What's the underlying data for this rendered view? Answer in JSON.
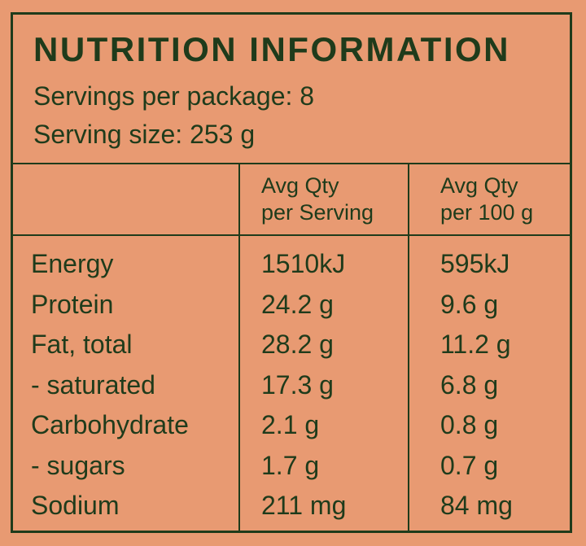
{
  "label": {
    "title": "NUTRITION INFORMATION",
    "servings_per_package": "Servings per package: 8",
    "serving_size": "Serving size: 253 g"
  },
  "columns": {
    "per_serving": [
      "Avg Qty",
      "per Serving"
    ],
    "per_100g": [
      "Avg Qty",
      "per 100 g"
    ]
  },
  "rows": [
    {
      "name": "Energy",
      "per_serving": "1510kJ",
      "per_100g": "595kJ"
    },
    {
      "name": "Protein",
      "per_serving": "24.2 g",
      "per_100g": "9.6 g"
    },
    {
      "name": "Fat, total",
      "per_serving": "28.2 g",
      "per_100g": "11.2 g"
    },
    {
      "name": "- saturated",
      "per_serving": "17.3 g",
      "per_100g": "6.8 g"
    },
    {
      "name": "Carbohydrate",
      "per_serving": "2.1 g",
      "per_100g": "0.8 g"
    },
    {
      "name": "- sugars",
      "per_serving": "1.7 g",
      "per_100g": "0.7 g"
    },
    {
      "name": "Sodium",
      "per_serving": "211 mg",
      "per_100g": "84 mg"
    }
  ],
  "colors": {
    "background": "#e89a72",
    "ink": "#1f3b1b"
  }
}
